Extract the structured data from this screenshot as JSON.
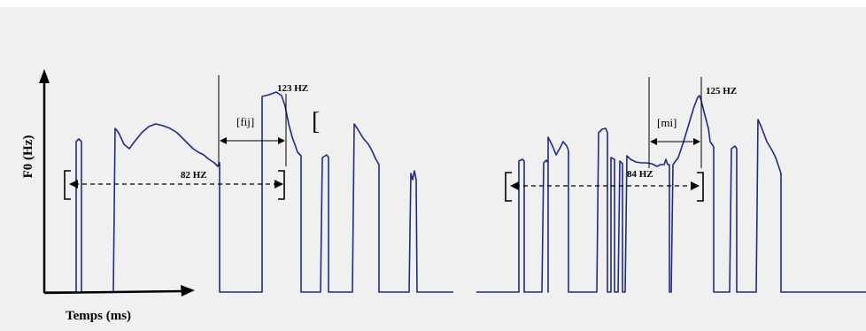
{
  "chart_data": {
    "type": "line",
    "ylabel": "F0 (Hz)",
    "xlabel": "Temps (ms)",
    "colors": {
      "background": "#f0f0f0",
      "trace": "#1f2a8c",
      "axis": "#000000"
    },
    "annotations": {
      "left": {
        "low": "82 HZ",
        "high": "123 HZ",
        "segment": "[fij]"
      },
      "right": {
        "low": "84 HZ",
        "high": "125 HZ",
        "segment": "[mi]"
      },
      "bracket": "["
    }
  }
}
